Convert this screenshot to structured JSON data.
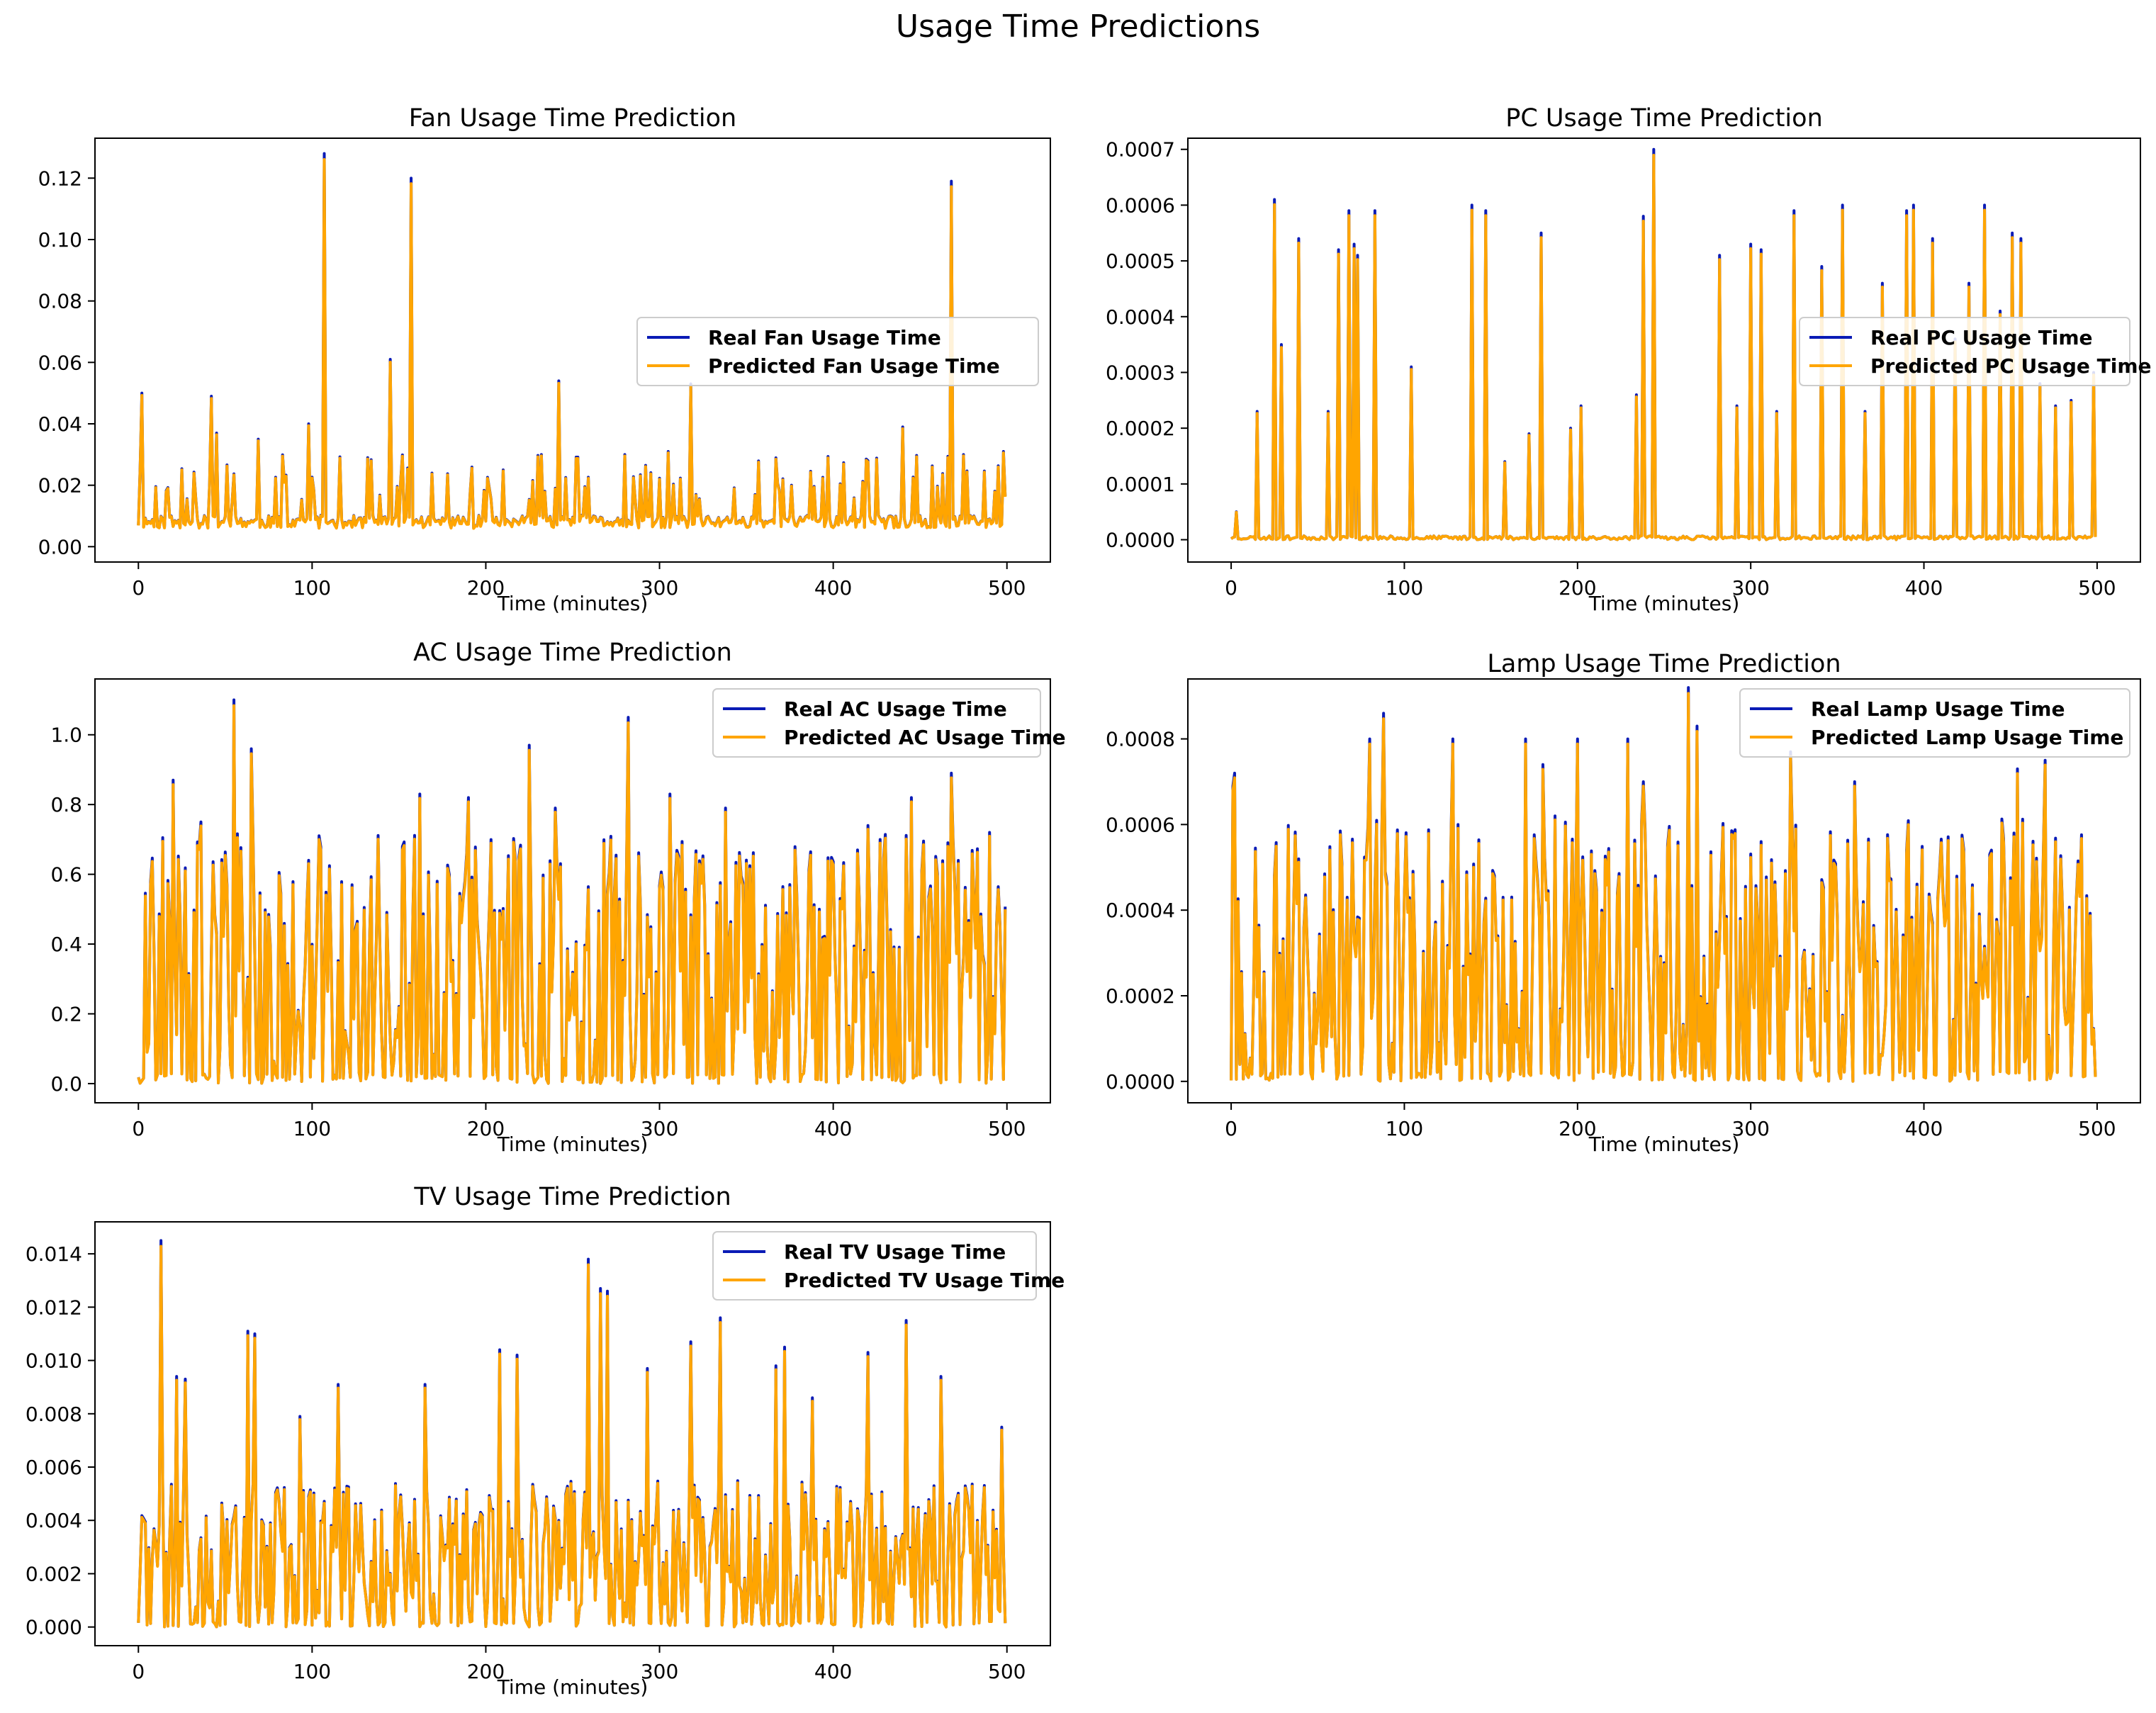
{
  "figure": {
    "title": "Usage Time Predictions"
  },
  "colors": {
    "real": "#0a1bb5",
    "predicted": "#ffa500",
    "axis": "#000000",
    "background": "#ffffff"
  },
  "chart_data": [
    {
      "id": "fan",
      "type": "line",
      "title": "Fan Usage Time Prediction",
      "xlabel": "Time (minutes)",
      "ylabel": "",
      "xlim": [
        -25,
        525
      ],
      "ylim": [
        -0.005,
        0.133
      ],
      "xticks": [
        0,
        100,
        200,
        300,
        400,
        500
      ],
      "yticks": [
        0.0,
        0.02,
        0.04,
        0.06,
        0.08,
        0.1,
        0.12
      ],
      "ytick_labels": [
        "0.00",
        "0.02",
        "0.04",
        "0.06",
        "0.08",
        "0.10",
        "0.12"
      ],
      "grid": false,
      "legend": {
        "position": "center-right",
        "entries": [
          "Real Fan Usage Time",
          "Predicted Fan Usage Time"
        ]
      },
      "series": [
        {
          "name": "Real Fan Usage Time",
          "color": "#0a1bb5",
          "seed": 11
        },
        {
          "name": "Predicted Fan Usage Time",
          "color": "#ffa500",
          "seed": 11
        }
      ],
      "gen": {
        "n": 500,
        "base": 0.009,
        "low_min": 0.006,
        "spike_prob": 0.2,
        "spike_min": 0.015,
        "spike_max": 0.03
      },
      "peaks": [
        [
          2,
          0.05
        ],
        [
          42,
          0.049
        ],
        [
          107,
          0.128
        ],
        [
          145,
          0.061
        ],
        [
          157,
          0.12
        ],
        [
          242,
          0.054
        ],
        [
          318,
          0.053
        ],
        [
          468,
          0.119
        ],
        [
          45,
          0.037
        ],
        [
          69,
          0.035
        ],
        [
          98,
          0.04
        ],
        [
          210,
          0.025
        ],
        [
          232,
          0.03
        ],
        [
          305,
          0.031
        ],
        [
          420,
          0.028
        ],
        [
          440,
          0.039
        ],
        [
          475,
          0.03
        ],
        [
          498,
          0.031
        ]
      ]
    },
    {
      "id": "pc",
      "type": "line",
      "title": "PC Usage Time Prediction",
      "xlabel": "Time (minutes)",
      "ylabel": "",
      "xlim": [
        -25,
        525
      ],
      "ylim": [
        -4e-05,
        0.00072
      ],
      "xticks": [
        0,
        100,
        200,
        300,
        400,
        500
      ],
      "yticks": [
        0.0,
        0.0001,
        0.0002,
        0.0003,
        0.0004,
        0.0005,
        0.0006,
        0.0007
      ],
      "ytick_labels": [
        "0.0000",
        "0.0001",
        "0.0002",
        "0.0003",
        "0.0004",
        "0.0005",
        "0.0006",
        "0.0007"
      ],
      "grid": false,
      "legend": {
        "position": "right",
        "entries": [
          "Real PC Usage Time",
          "Predicted PC Usage Time"
        ]
      },
      "series": [
        {
          "name": "Real PC Usage Time",
          "color": "#0a1bb5",
          "seed": 23
        },
        {
          "name": "Predicted PC Usage Time",
          "color": "#ffa500",
          "seed": 23
        }
      ],
      "gen": {
        "n": 500,
        "base": 5e-06,
        "low_min": 0.0,
        "spike_prob": 0.0,
        "spike_min": 0.0,
        "spike_max": 0.0
      },
      "peaks": [
        [
          3,
          5e-05
        ],
        [
          15,
          0.00023
        ],
        [
          25,
          0.00061
        ],
        [
          29,
          0.00035
        ],
        [
          39,
          0.00054
        ],
        [
          56,
          0.00023
        ],
        [
          62,
          0.00052
        ],
        [
          68,
          0.00059
        ],
        [
          71,
          0.00053
        ],
        [
          73,
          0.00051
        ],
        [
          83,
          0.00059
        ],
        [
          104,
          0.00031
        ],
        [
          139,
          0.0006
        ],
        [
          147,
          0.00059
        ],
        [
          158,
          0.00014
        ],
        [
          172,
          0.00019
        ],
        [
          179,
          0.00055
        ],
        [
          196,
          0.0002
        ],
        [
          202,
          0.00024
        ],
        [
          234,
          0.00026
        ],
        [
          238,
          0.00058
        ],
        [
          244,
          0.0007
        ],
        [
          282,
          0.00051
        ],
        [
          292,
          0.00024
        ],
        [
          300,
          0.00053
        ],
        [
          306,
          0.00052
        ],
        [
          315,
          0.00023
        ],
        [
          325,
          0.00059
        ],
        [
          341,
          0.00049
        ],
        [
          353,
          0.0006
        ],
        [
          366,
          0.00023
        ],
        [
          376,
          0.00046
        ],
        [
          390,
          0.00059
        ],
        [
          394,
          0.0006
        ],
        [
          405,
          0.00054
        ],
        [
          418,
          0.00036
        ],
        [
          426,
          0.00046
        ],
        [
          435,
          0.0006
        ],
        [
          444,
          0.00041
        ],
        [
          451,
          0.00055
        ],
        [
          456,
          0.00054
        ],
        [
          467,
          0.00028
        ],
        [
          476,
          0.00024
        ],
        [
          485,
          0.00025
        ],
        [
          498,
          0.0003
        ]
      ]
    },
    {
      "id": "ac",
      "type": "line",
      "title": "AC Usage Time Prediction",
      "xlabel": "Time (minutes)",
      "ylabel": "",
      "xlim": [
        -25,
        525
      ],
      "ylim": [
        -0.055,
        1.16
      ],
      "xticks": [
        0,
        100,
        200,
        300,
        400,
        500
      ],
      "yticks": [
        0.0,
        0.2,
        0.4,
        0.6,
        0.8,
        1.0
      ],
      "ytick_labels": [
        "0.0",
        "0.2",
        "0.4",
        "0.6",
        "0.8",
        "1.0"
      ],
      "grid": false,
      "legend": {
        "position": "top-right",
        "entries": [
          "Real AC Usage Time",
          "Predicted AC Usage Time"
        ]
      },
      "series": [
        {
          "name": "Real AC Usage Time",
          "color": "#0a1bb5",
          "seed": 37
        },
        {
          "name": "Predicted AC Usage Time",
          "color": "#ffa500",
          "seed": 37
        }
      ],
      "gen": {
        "n": 500,
        "style": "dense",
        "min": 0.0,
        "max": 0.72,
        "zero_prob": 0.3
      },
      "peaks": [
        [
          55,
          1.1
        ],
        [
          65,
          0.96
        ],
        [
          225,
          0.97
        ],
        [
          282,
          1.05
        ],
        [
          468,
          0.89
        ],
        [
          20,
          0.87
        ],
        [
          36,
          0.75
        ],
        [
          98,
          0.64
        ],
        [
          162,
          0.83
        ],
        [
          190,
          0.82
        ],
        [
          240,
          0.79
        ],
        [
          306,
          0.83
        ],
        [
          338,
          0.79
        ],
        [
          420,
          0.74
        ],
        [
          445,
          0.82
        ],
        [
          490,
          0.72
        ]
      ]
    },
    {
      "id": "lamp",
      "type": "line",
      "title": "Lamp Usage Time Prediction",
      "xlabel": "Time (minutes)",
      "ylabel": "",
      "xlim": [
        -25,
        525
      ],
      "ylim": [
        -5e-05,
        0.00094
      ],
      "xticks": [
        0,
        100,
        200,
        300,
        400,
        500
      ],
      "yticks": [
        0.0,
        0.0002,
        0.0004,
        0.0006,
        0.0008
      ],
      "ytick_labels": [
        "0.0000",
        "0.0002",
        "0.0004",
        "0.0006",
        "0.0008"
      ],
      "grid": false,
      "legend": {
        "position": "top-right",
        "entries": [
          "Real Lamp Usage Time",
          "Predicted Lamp Usage Time"
        ]
      },
      "series": [
        {
          "name": "Real Lamp Usage Time",
          "color": "#0a1bb5",
          "seed": 53
        },
        {
          "name": "Predicted Lamp Usage Time",
          "color": "#ffa500",
          "seed": 53
        }
      ],
      "gen": {
        "n": 500,
        "style": "dense",
        "min": 0.0,
        "max": 0.00062,
        "zero_prob": 0.3
      },
      "peaks": [
        [
          1,
          0.00069
        ],
        [
          2,
          0.00072
        ],
        [
          80,
          0.0008
        ],
        [
          88,
          0.00086
        ],
        [
          180,
          0.00074
        ],
        [
          229,
          0.0008
        ],
        [
          264,
          0.00092
        ],
        [
          269,
          0.00083
        ],
        [
          323,
          0.00077
        ],
        [
          454,
          0.00073
        ],
        [
          128,
          0.0008
        ],
        [
          170,
          0.0008
        ],
        [
          200,
          0.0008
        ],
        [
          238,
          0.0007
        ],
        [
          360,
          0.0007
        ],
        [
          470,
          0.00075
        ]
      ]
    },
    {
      "id": "tv",
      "type": "line",
      "title": "TV Usage Time Prediction",
      "xlabel": "Time (minutes)",
      "ylabel": "",
      "xlim": [
        -25,
        525
      ],
      "ylim": [
        -0.0007,
        0.0152
      ],
      "xticks": [
        0,
        100,
        200,
        300,
        400,
        500
      ],
      "yticks": [
        0.0,
        0.002,
        0.004,
        0.006,
        0.008,
        0.01,
        0.012,
        0.014
      ],
      "ytick_labels": [
        "0.000",
        "0.002",
        "0.004",
        "0.006",
        "0.008",
        "0.010",
        "0.012",
        "0.014"
      ],
      "grid": false,
      "legend": {
        "position": "top-right",
        "entries": [
          "Real TV Usage Time",
          "Predicted TV Usage Time"
        ]
      },
      "series": [
        {
          "name": "Real TV Usage Time",
          "color": "#0a1bb5",
          "seed": 71
        },
        {
          "name": "Predicted TV Usage Time",
          "color": "#ffa500",
          "seed": 71
        }
      ],
      "gen": {
        "n": 500,
        "style": "dense",
        "min": 0.0,
        "max": 0.0055,
        "zero_prob": 0.3
      },
      "peaks": [
        [
          13,
          0.0145
        ],
        [
          22,
          0.0094
        ],
        [
          27,
          0.0093
        ],
        [
          63,
          0.0111
        ],
        [
          67,
          0.011
        ],
        [
          93,
          0.0079
        ],
        [
          115,
          0.0091
        ],
        [
          165,
          0.0091
        ],
        [
          208,
          0.0104
        ],
        [
          218,
          0.0102
        ],
        [
          259,
          0.0138
        ],
        [
          266,
          0.0127
        ],
        [
          270,
          0.0126
        ],
        [
          293,
          0.0097
        ],
        [
          318,
          0.0107
        ],
        [
          335,
          0.0116
        ],
        [
          367,
          0.0098
        ],
        [
          372,
          0.0105
        ],
        [
          388,
          0.0086
        ],
        [
          420,
          0.0103
        ],
        [
          442,
          0.0115
        ],
        [
          462,
          0.0094
        ],
        [
          497,
          0.0075
        ]
      ]
    }
  ]
}
